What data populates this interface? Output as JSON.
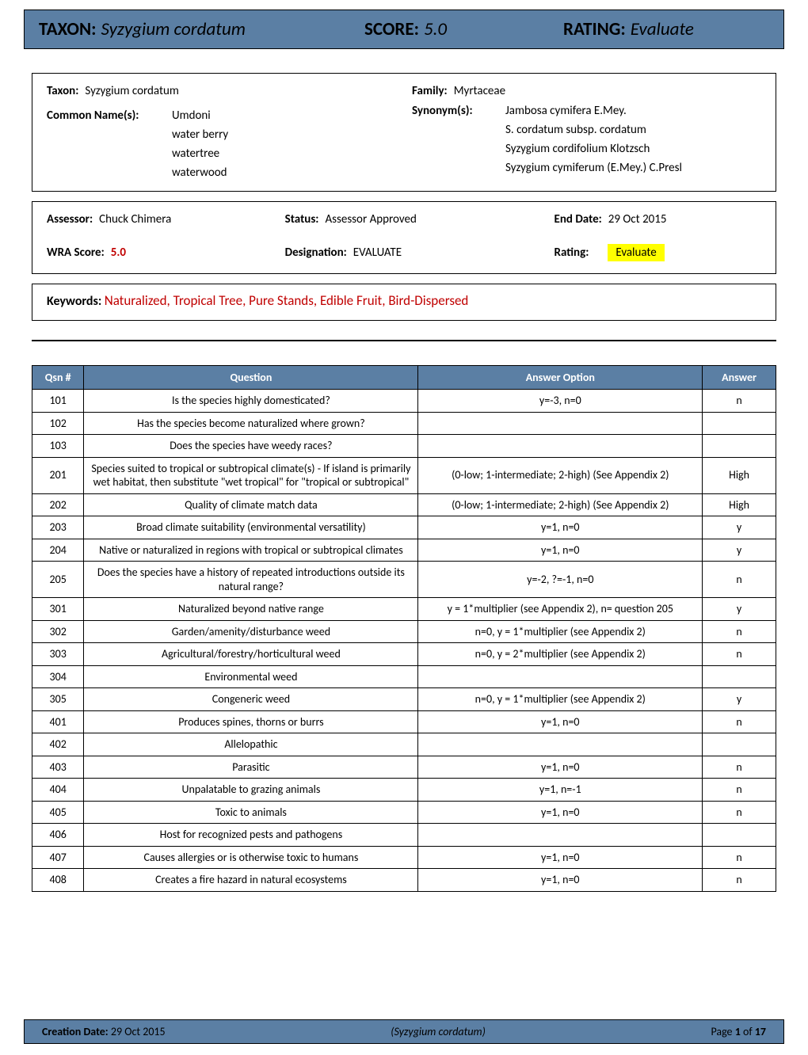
{
  "header": {
    "taxon_label": "TAXON:",
    "taxon_value": "Syzygium cordatum",
    "score_label": "SCORE:",
    "score_value": "5.0",
    "rating_label": "RATING:",
    "rating_value": "Evaluate"
  },
  "info": {
    "taxon_label": "Taxon:",
    "taxon_value": "Syzygium cordatum",
    "family_label": "Family:",
    "family_value": "Myrtaceae",
    "common_label": "Common Name(s):",
    "common_names": [
      "Umdoni",
      "water berry",
      "watertree",
      "waterwood"
    ],
    "synonym_label": "Synonym(s):",
    "synonyms": [
      "Jambosa cymifera E.Mey.",
      "S. cordatum subsp. cordatum",
      "Syzygium cordifolium Klotzsch",
      "Syzygium cymiferum (E.Mey.) C.Presl"
    ]
  },
  "assess": {
    "assessor_label": "Assessor:",
    "assessor_value": "Chuck Chimera",
    "status_label": "Status:",
    "status_value": "Assessor Approved",
    "end_date_label": "End Date:",
    "end_date_value": "29 Oct 2015",
    "wra_label": "WRA Score:",
    "wra_value": "5.0",
    "designation_label": "Designation:",
    "designation_value": "EVALUATE",
    "rating_label": "Rating:",
    "rating_value": "Evaluate"
  },
  "keywords": {
    "label": "Keywords:",
    "value": "Naturalized, Tropical Tree, Pure Stands, Edible Fruit, Bird-Dispersed"
  },
  "table": {
    "headers": [
      "Qsn #",
      "Question",
      "Answer Option",
      "Answer"
    ],
    "header_bg": "#5b7fa4",
    "header_fg": "#ffffff",
    "rows": [
      [
        "101",
        "Is the species highly domesticated?",
        "y=-3, n=0",
        "n"
      ],
      [
        "102",
        "Has the species become naturalized where grown?",
        "",
        ""
      ],
      [
        "103",
        "Does the species have weedy races?",
        "",
        ""
      ],
      [
        "201",
        "Species suited to tropical or subtropical climate(s) - If island is primarily wet habitat, then substitute \"wet tropical\" for \"tropical or subtropical\"",
        "(0-low; 1-intermediate; 2-high)  (See Appendix 2)",
        "High"
      ],
      [
        "202",
        "Quality of climate match data",
        "(0-low; 1-intermediate; 2-high)  (See Appendix 2)",
        "High"
      ],
      [
        "203",
        "Broad climate suitability (environmental versatility)",
        "y=1, n=0",
        "y"
      ],
      [
        "204",
        "Native or naturalized in regions with tropical or subtropical climates",
        "y=1, n=0",
        "y"
      ],
      [
        "205",
        "Does the species have a history of repeated introductions outside its natural range?",
        "y=-2, ?=-1, n=0",
        "n"
      ],
      [
        "301",
        "Naturalized beyond native range",
        "y = 1*multiplier (see Appendix 2), n= question 205",
        "y"
      ],
      [
        "302",
        "Garden/amenity/disturbance weed",
        "n=0, y = 1*multiplier (see Appendix 2)",
        "n"
      ],
      [
        "303",
        "Agricultural/forestry/horticultural weed",
        "n=0, y = 2*multiplier (see Appendix 2)",
        "n"
      ],
      [
        "304",
        "Environmental weed",
        "",
        ""
      ],
      [
        "305",
        "Congeneric weed",
        "n=0, y = 1*multiplier (see Appendix 2)",
        "y"
      ],
      [
        "401",
        "Produces spines, thorns or burrs",
        "y=1, n=0",
        "n"
      ],
      [
        "402",
        "Allelopathic",
        "",
        ""
      ],
      [
        "403",
        "Parasitic",
        "y=1, n=0",
        "n"
      ],
      [
        "404",
        "Unpalatable to grazing animals",
        "y=1, n=-1",
        "n"
      ],
      [
        "405",
        "Toxic to animals",
        "y=1, n=0",
        "n"
      ],
      [
        "406",
        "Host for recognized pests and pathogens",
        "",
        ""
      ],
      [
        "407",
        "Causes allergies or is otherwise toxic to humans",
        "y=1, n=0",
        "n"
      ],
      [
        "408",
        "Creates a fire hazard in natural ecosystems",
        "y=1, n=0",
        "n"
      ]
    ]
  },
  "footer": {
    "creation_label": "Creation Date:",
    "creation_value": "29 Oct 2015",
    "subject": "(Syzygium cordatum)",
    "page_label": "Page",
    "page_current": "1",
    "page_of": "of",
    "page_total": "17"
  },
  "colors": {
    "bar_bg": "#5b7fa4",
    "highlight": "#ffff00",
    "keyword_red": "#c00000"
  }
}
